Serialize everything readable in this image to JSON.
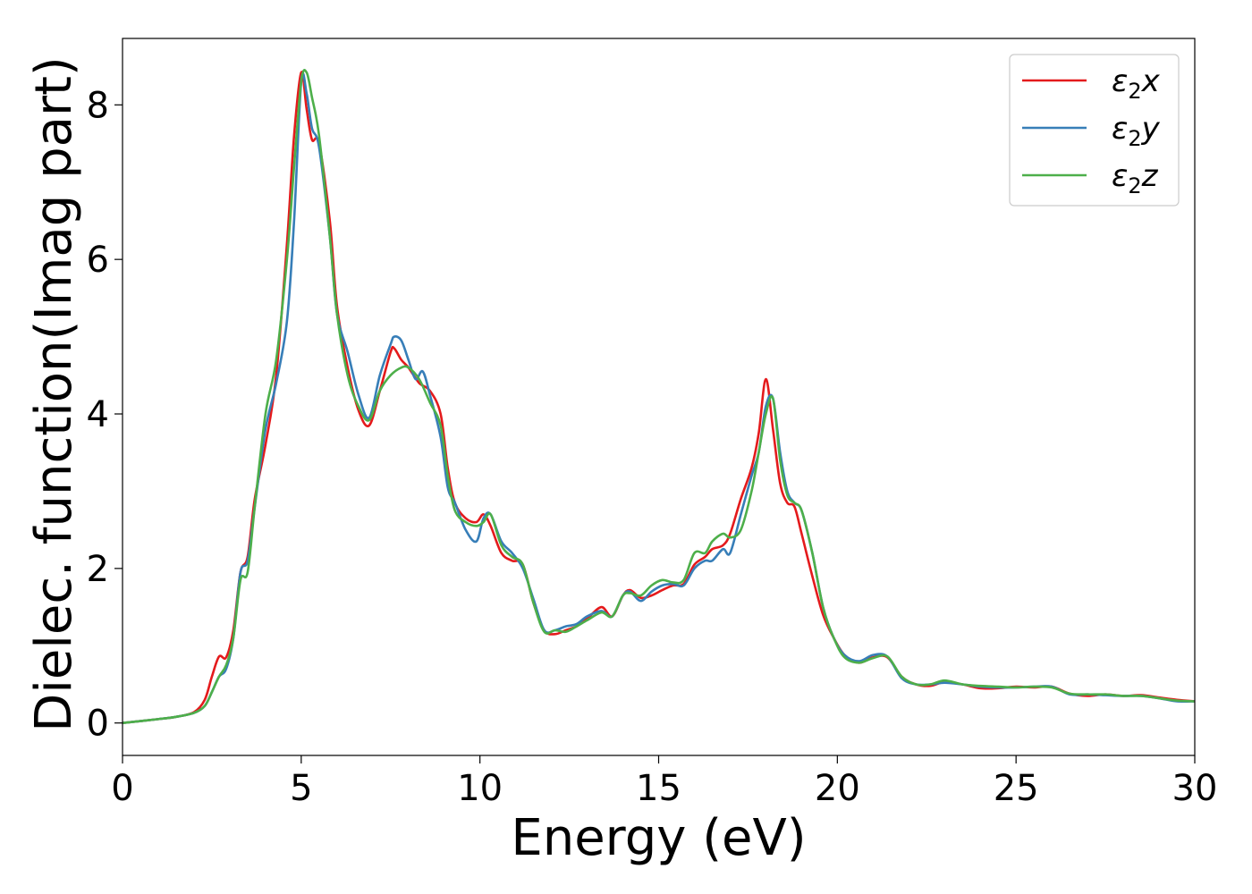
{
  "chart_data": {
    "type": "line",
    "title": "",
    "xlabel": "Energy (eV)",
    "ylabel": "Dielec. function(Imag part)",
    "xlim": [
      0,
      30
    ],
    "ylim": [
      -0.42,
      8.86
    ],
    "xticks": [
      0,
      5,
      10,
      15,
      20,
      25,
      30
    ],
    "yticks": [
      0,
      2,
      4,
      6,
      8
    ],
    "xtick_labels": [
      "0",
      "5",
      "10",
      "15",
      "20",
      "25",
      "30"
    ],
    "ytick_labels": [
      "0",
      "2",
      "4",
      "6",
      "8"
    ],
    "grid": false,
    "legend_position": "top-right",
    "series": [
      {
        "name": "ε₂x",
        "legend_main": "ε",
        "legend_sub": "2",
        "legend_suffix": "x",
        "color": "#e41a1c",
        "x": [
          0,
          1,
          1.5,
          2.0,
          2.3,
          2.5,
          2.7,
          2.9,
          3.1,
          3.3,
          3.5,
          3.7,
          4.0,
          4.3,
          4.6,
          4.8,
          5.0,
          5.15,
          5.3,
          5.5,
          5.8,
          6.0,
          6.3,
          6.6,
          6.9,
          7.2,
          7.5,
          7.6,
          7.8,
          8.0,
          8.3,
          8.6,
          8.9,
          9.1,
          9.3,
          9.6,
          9.9,
          10.1,
          10.3,
          10.6,
          10.9,
          11.2,
          11.5,
          11.8,
          12.1,
          12.4,
          12.7,
          13.0,
          13.4,
          13.7,
          14.0,
          14.2,
          14.5,
          14.8,
          15.1,
          15.4,
          15.7,
          16.0,
          16.3,
          16.5,
          16.8,
          17.0,
          17.3,
          17.6,
          17.8,
          18.0,
          18.2,
          18.4,
          18.6,
          18.8,
          19.0,
          19.3,
          19.6,
          19.9,
          20.2,
          20.6,
          21.0,
          21.4,
          21.8,
          22.2,
          22.6,
          23.0,
          23.5,
          24.0,
          24.5,
          25.0,
          25.5,
          26.0,
          26.5,
          27.0,
          27.5,
          28.0,
          28.5,
          29.0,
          29.5,
          30.0
        ],
        "y": [
          0.0,
          0.05,
          0.08,
          0.14,
          0.3,
          0.6,
          0.86,
          0.85,
          1.2,
          1.95,
          2.15,
          2.9,
          3.6,
          4.5,
          6.2,
          7.6,
          8.42,
          7.95,
          7.55,
          7.5,
          6.5,
          5.4,
          4.6,
          4.05,
          3.85,
          4.3,
          4.8,
          4.85,
          4.7,
          4.6,
          4.4,
          4.3,
          4.0,
          3.3,
          2.85,
          2.65,
          2.6,
          2.7,
          2.55,
          2.2,
          2.1,
          2.05,
          1.55,
          1.2,
          1.15,
          1.2,
          1.25,
          1.35,
          1.5,
          1.38,
          1.65,
          1.72,
          1.62,
          1.65,
          1.72,
          1.78,
          1.8,
          2.05,
          2.15,
          2.25,
          2.3,
          2.45,
          2.9,
          3.3,
          3.75,
          4.45,
          3.8,
          3.1,
          2.85,
          2.8,
          2.45,
          1.9,
          1.4,
          1.1,
          0.88,
          0.78,
          0.85,
          0.85,
          0.6,
          0.5,
          0.48,
          0.53,
          0.5,
          0.45,
          0.45,
          0.47,
          0.46,
          0.47,
          0.38,
          0.35,
          0.37,
          0.35,
          0.36,
          0.33,
          0.3,
          0.28
        ]
      },
      {
        "name": "ε₂y",
        "legend_main": "ε",
        "legend_sub": "2",
        "legend_suffix": "y",
        "color": "#377eb8",
        "x": [
          0,
          1,
          1.5,
          2.0,
          2.3,
          2.5,
          2.7,
          2.9,
          3.1,
          3.3,
          3.5,
          3.7,
          4.0,
          4.3,
          4.6,
          4.8,
          5.0,
          5.15,
          5.3,
          5.5,
          5.8,
          6.0,
          6.3,
          6.6,
          6.9,
          7.2,
          7.5,
          7.6,
          7.8,
          8.0,
          8.2,
          8.4,
          8.6,
          8.9,
          9.1,
          9.3,
          9.6,
          9.9,
          10.1,
          10.3,
          10.6,
          10.9,
          11.2,
          11.5,
          11.8,
          12.1,
          12.4,
          12.7,
          13.0,
          13.4,
          13.7,
          14.0,
          14.2,
          14.5,
          14.8,
          15.1,
          15.4,
          15.7,
          16.0,
          16.3,
          16.5,
          16.8,
          17.0,
          17.3,
          17.6,
          17.8,
          18.0,
          18.2,
          18.4,
          18.6,
          18.8,
          19.0,
          19.3,
          19.6,
          19.9,
          20.2,
          20.6,
          21.0,
          21.4,
          21.8,
          22.2,
          22.6,
          23.0,
          23.5,
          24.0,
          24.5,
          25.0,
          25.5,
          26.0,
          26.5,
          27.0,
          27.5,
          28.0,
          28.5,
          29.0,
          29.5,
          30.0
        ],
        "y": [
          0.0,
          0.05,
          0.08,
          0.13,
          0.22,
          0.4,
          0.6,
          0.7,
          1.1,
          1.95,
          2.1,
          2.8,
          3.8,
          4.4,
          5.2,
          6.5,
          8.3,
          8.15,
          7.7,
          7.45,
          6.3,
          5.3,
          4.8,
          4.25,
          3.95,
          4.5,
          4.9,
          5.0,
          4.95,
          4.7,
          4.45,
          4.55,
          4.25,
          3.7,
          3.05,
          2.85,
          2.5,
          2.35,
          2.65,
          2.7,
          2.35,
          2.2,
          2.0,
          1.6,
          1.2,
          1.2,
          1.25,
          1.28,
          1.38,
          1.45,
          1.38,
          1.65,
          1.7,
          1.58,
          1.7,
          1.78,
          1.8,
          1.78,
          2.0,
          2.1,
          2.1,
          2.25,
          2.2,
          2.7,
          3.2,
          3.5,
          4.1,
          4.2,
          3.5,
          3.0,
          2.85,
          2.75,
          2.2,
          1.5,
          1.1,
          0.88,
          0.8,
          0.88,
          0.86,
          0.58,
          0.5,
          0.5,
          0.52,
          0.5,
          0.47,
          0.46,
          0.46,
          0.47,
          0.47,
          0.37,
          0.37,
          0.36,
          0.35,
          0.35,
          0.32,
          0.28,
          0.28
        ]
      },
      {
        "name": "ε₂z",
        "legend_main": "ε",
        "legend_sub": "2",
        "legend_suffix": "z",
        "color": "#4daf4a",
        "x": [
          0,
          1,
          1.5,
          2.0,
          2.3,
          2.5,
          2.7,
          2.9,
          3.1,
          3.3,
          3.5,
          3.7,
          4.0,
          4.3,
          4.6,
          4.8,
          5.0,
          5.15,
          5.3,
          5.5,
          5.8,
          6.0,
          6.3,
          6.6,
          6.9,
          7.2,
          7.5,
          7.8,
          8.0,
          8.3,
          8.6,
          8.9,
          9.1,
          9.3,
          9.6,
          9.9,
          10.1,
          10.3,
          10.6,
          10.9,
          11.2,
          11.5,
          11.8,
          12.1,
          12.4,
          12.7,
          13.0,
          13.4,
          13.7,
          14.0,
          14.2,
          14.5,
          14.8,
          15.1,
          15.4,
          15.7,
          16.0,
          16.3,
          16.5,
          16.8,
          17.0,
          17.3,
          17.6,
          17.8,
          18.0,
          18.2,
          18.4,
          18.6,
          18.8,
          19.0,
          19.3,
          19.6,
          19.9,
          20.2,
          20.6,
          21.0,
          21.4,
          21.8,
          22.2,
          22.6,
          23.0,
          23.5,
          24.0,
          24.5,
          25.0,
          25.5,
          26.0,
          26.5,
          27.0,
          27.5,
          28.0,
          28.5,
          29.0,
          29.5,
          30.0
        ],
        "y": [
          0.0,
          0.05,
          0.08,
          0.13,
          0.22,
          0.4,
          0.6,
          0.75,
          1.1,
          1.85,
          1.95,
          2.8,
          4.0,
          4.7,
          6.0,
          7.2,
          8.3,
          8.42,
          8.1,
          7.6,
          6.3,
          5.3,
          4.5,
          4.1,
          3.92,
          4.3,
          4.5,
          4.6,
          4.6,
          4.45,
          4.15,
          3.85,
          3.2,
          2.75,
          2.6,
          2.55,
          2.6,
          2.7,
          2.3,
          2.15,
          2.05,
          1.55,
          1.18,
          1.2,
          1.18,
          1.25,
          1.33,
          1.43,
          1.38,
          1.65,
          1.68,
          1.65,
          1.78,
          1.85,
          1.82,
          1.85,
          2.2,
          2.2,
          2.35,
          2.45,
          2.4,
          2.5,
          3.0,
          3.5,
          4.0,
          4.2,
          3.4,
          2.95,
          2.85,
          2.75,
          2.2,
          1.5,
          1.1,
          0.85,
          0.78,
          0.84,
          0.86,
          0.6,
          0.5,
          0.5,
          0.55,
          0.5,
          0.48,
          0.47,
          0.46,
          0.47,
          0.46,
          0.38,
          0.37,
          0.37,
          0.35,
          0.35,
          0.32,
          0.29,
          0.28
        ]
      }
    ]
  }
}
